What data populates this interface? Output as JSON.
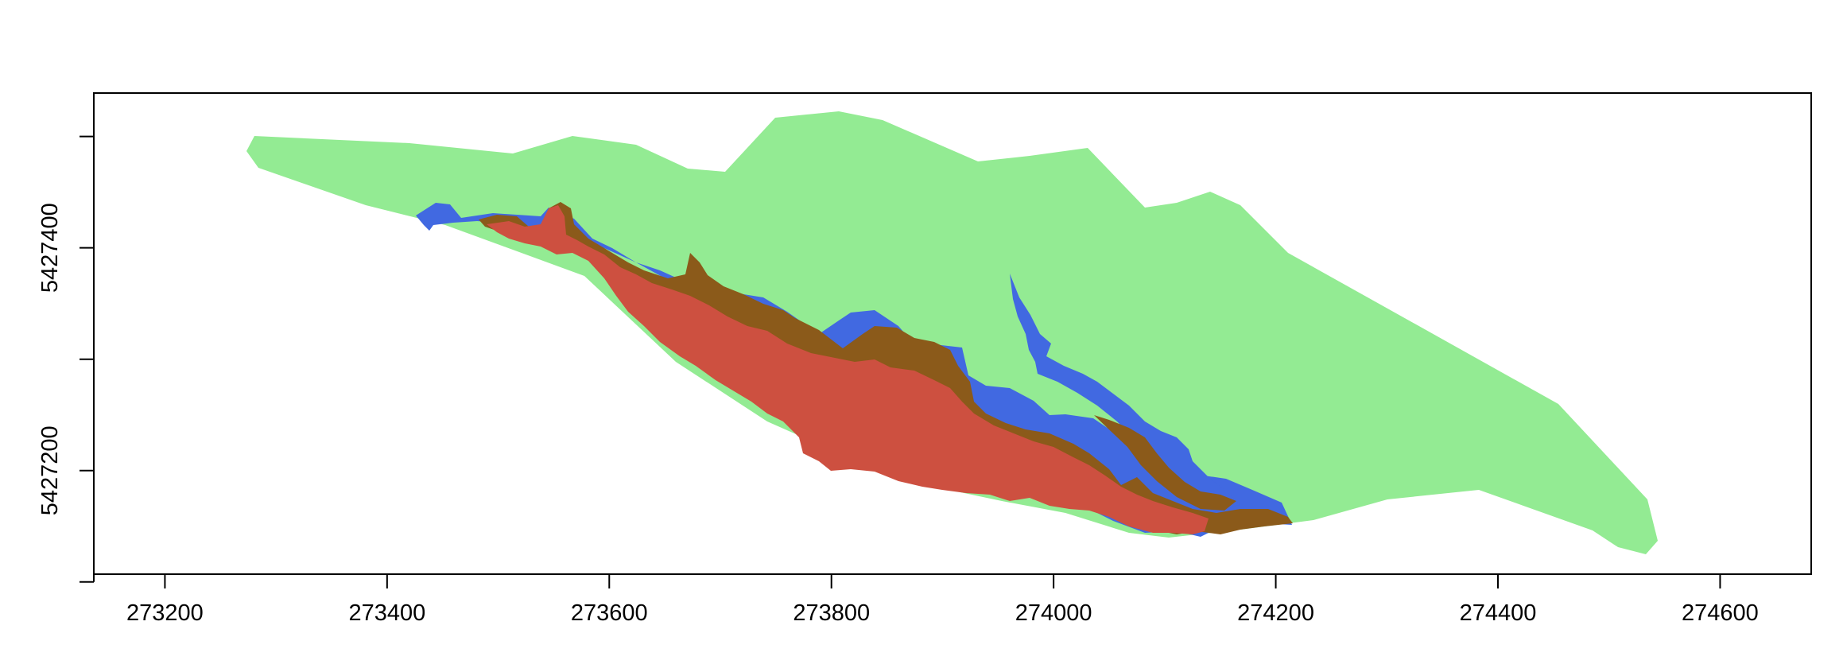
{
  "chart_data": {
    "type": "map",
    "x_axis": {
      "ticks": [
        273200,
        273400,
        273600,
        273800,
        274000,
        274200,
        274400,
        274600
      ],
      "labels": [
        "273200",
        "273400",
        "273600",
        "273800",
        "274000",
        "274200",
        "274400",
        "274600"
      ]
    },
    "y_axis": {
      "ticks": [
        5427100,
        5427200,
        5427300,
        5427400,
        5427500
      ],
      "labeled_ticks": [
        5427200,
        5427400
      ],
      "labels": [
        "5427200",
        "5427400"
      ]
    },
    "xlim": [
      273136,
      274682
    ],
    "ylim": [
      5427107,
      5427539
    ],
    "layers": [
      {
        "name": "",
        "color": "#93eb93"
      },
      {
        "name": "",
        "color": "#4169e1"
      },
      {
        "name": "",
        "color": "#8b5a1a"
      },
      {
        "name": "",
        "color": "#cd5040"
      }
    ]
  },
  "colors": {
    "frame": "#000000",
    "background": "#ffffff"
  }
}
